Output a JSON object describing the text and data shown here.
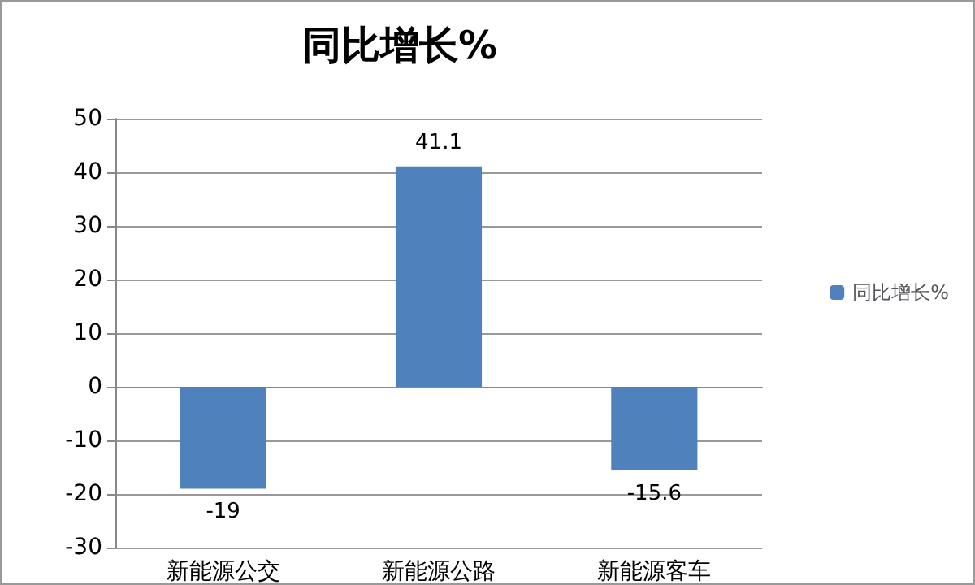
{
  "chart_data": {
    "type": "bar",
    "title": "同比增长%",
    "categories": [
      "新能源公交",
      "新能源公路",
      "新能源客车"
    ],
    "series": [
      {
        "name": "同比增长%",
        "color": "#4f81bd",
        "values": [
          -19,
          41.1,
          -15.6
        ]
      }
    ],
    "ylim": [
      -30,
      50
    ],
    "yticks": [
      -30,
      -20,
      -10,
      0,
      10,
      20,
      30,
      40,
      50
    ],
    "grid": "y",
    "legend": "right",
    "data_labels": true
  }
}
